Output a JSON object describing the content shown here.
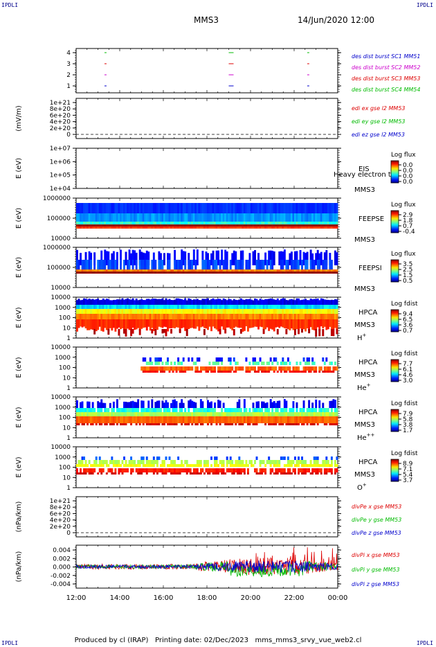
{
  "corner_label": "IPDLI",
  "header": {
    "spacecraft": "MMS3",
    "datetime": "14/Jun/2020 12:00"
  },
  "footer": {
    "produced": "Produced by cl (IRAP)",
    "printing": "Printing date: 02/Dec/2023",
    "file": "mms_mms3_srvy_vue_web2.cl"
  },
  "chart_data": {
    "type": "heatmap",
    "x_ticks": [
      "12:00",
      "14:00",
      "16:00",
      "18:00",
      "20:00",
      "22:00",
      "00:00"
    ],
    "x_range_hours": [
      12,
      24
    ],
    "panels": [
      {
        "id": "burst",
        "type": "scatter",
        "ylabel": "",
        "y_ticks": [
          "4",
          "3",
          "2",
          "1"
        ],
        "legend": [
          {
            "text": "des dist burst SC1 MM51",
            "color": "#0000cc"
          },
          {
            "text": "des dist burst SC2 MM52",
            "color": "#cc00cc"
          },
          {
            "text": "des dist burst SC3 MM53",
            "color": "#dd0000"
          },
          {
            "text": "des dist burst SC4 MM54",
            "color": "#00bb00"
          }
        ],
        "burst_times_hours": [
          13.3,
          19.0,
          22.6
        ]
      },
      {
        "id": "edi",
        "type": "line",
        "ylabel": "(mV/m)",
        "y_ticks": [
          "1e+21",
          "8e+20",
          "6e+20",
          "4e+20",
          "2e+20",
          "0"
        ],
        "legend": [
          {
            "text": "edi ex gse l2 MM53",
            "color": "#dd0000"
          },
          {
            "text": "edi ey gse l2 MM53",
            "color": "#00bb00"
          },
          {
            "text": "edi ez gse l2 MM53",
            "color": "#0000cc"
          }
        ]
      },
      {
        "id": "eis",
        "type": "heatmap",
        "ylabel": "E (eV)",
        "y_ticks": [
          "1e+07",
          "1e+06",
          "1e+05",
          "1e+04"
        ],
        "name": "EIS",
        "name2": "MMS3",
        "overlay_text": "Heavy electron to",
        "cbar_title": "Log flux",
        "cbar_ticks": [
          "0.0",
          "0.0",
          "0.0",
          "0.0"
        ]
      },
      {
        "id": "feepse",
        "type": "heatmap",
        "ylabel": "E (eV)",
        "y_ticks": [
          "1000000",
          "100000",
          "10000"
        ],
        "name": "FEEPSE",
        "name2": "MMS3",
        "cbar_title": "Log flux",
        "cbar_ticks": [
          "2.9",
          "1.8",
          "0.7",
          "-0.4"
        ]
      },
      {
        "id": "feepsi",
        "type": "heatmap",
        "ylabel": "E (eV)",
        "y_ticks": [
          "1000000",
          "100000",
          "10000"
        ],
        "name": "FEEPSI",
        "name2": "MMS3",
        "cbar_title": "Log flux",
        "cbar_ticks": [
          "3.5",
          "2.5",
          "1.5",
          "0.5"
        ]
      },
      {
        "id": "hpca_h",
        "type": "heatmap",
        "ylabel": "E (eV)",
        "y_ticks": [
          "10000",
          "1000",
          "100",
          "10",
          "1"
        ],
        "name": "HPCA",
        "name2": "MMS3",
        "species": "H",
        "species_sup": "+",
        "cbar_title": "Log fdist",
        "cbar_ticks": [
          "9.4",
          "6.5",
          "3.6",
          "0.7"
        ]
      },
      {
        "id": "hpca_he",
        "type": "heatmap",
        "ylabel": "E (eV)",
        "y_ticks": [
          "10000",
          "1000",
          "100",
          "10",
          "1"
        ],
        "name": "HPCA",
        "name2": "MMS3",
        "species": "He",
        "species_sup": "+",
        "cbar_title": "Log fdist",
        "cbar_ticks": [
          "7.7",
          "6.1",
          "4.6",
          "3.0"
        ]
      },
      {
        "id": "hpca_hepp",
        "type": "heatmap",
        "ylabel": "E (eV)",
        "y_ticks": [
          "10000",
          "1000",
          "100",
          "10",
          "1"
        ],
        "name": "HPCA",
        "name2": "MMS3",
        "species": "He",
        "species_sup": "++",
        "cbar_title": "Log fdist",
        "cbar_ticks": [
          "7.9",
          "5.8",
          "3.8",
          "1.7"
        ]
      },
      {
        "id": "hpca_o",
        "type": "heatmap",
        "ylabel": "E (eV)",
        "y_ticks": [
          "10000",
          "1000",
          "100",
          "10",
          "1"
        ],
        "name": "HPCA",
        "name2": "MMS3",
        "species": "O",
        "species_sup": "+",
        "cbar_title": "Log fdist",
        "cbar_ticks": [
          "8.9",
          "7.1",
          "5.4",
          "3.7"
        ]
      },
      {
        "id": "divpe",
        "type": "line",
        "ylabel": "(nPa/km)",
        "y_ticks": [
          "1e+21",
          "8e+20",
          "6e+20",
          "4e+20",
          "2e+20",
          "0"
        ],
        "legend": [
          {
            "text": "divPe x gse MM53",
            "color": "#dd0000"
          },
          {
            "text": "divPe y gse MM53",
            "color": "#00bb00"
          },
          {
            "text": "divPe z gse MM53",
            "color": "#0000cc"
          }
        ]
      },
      {
        "id": "divpi",
        "type": "line",
        "ylabel": "(nPa/km)",
        "y_ticks": [
          "0.004",
          "0.002",
          "0.000",
          "-0.002",
          "-0.004"
        ],
        "y_range": [
          -0.005,
          0.005
        ],
        "legend": [
          {
            "text": "divPi x gse MM53",
            "color": "#dd0000"
          },
          {
            "text": "divPi y gse MM53",
            "color": "#00bb00"
          },
          {
            "text": "divPi z gse MM53",
            "color": "#0000cc"
          }
        ]
      }
    ]
  }
}
